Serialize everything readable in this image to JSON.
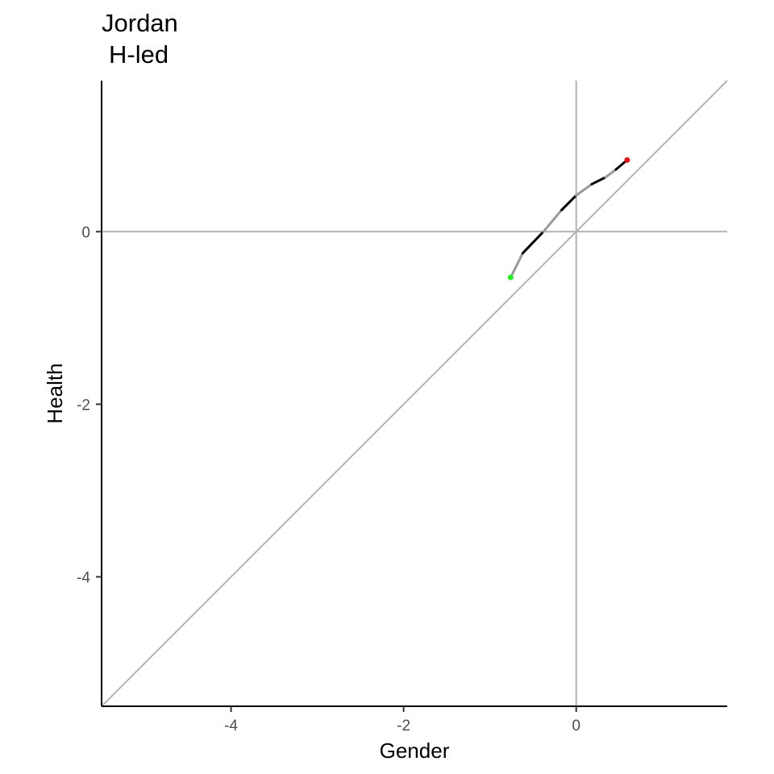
{
  "chart_data": {
    "type": "line",
    "title_lines": [
      "Jordan",
      "H-led"
    ],
    "xlabel": "Gender",
    "ylabel": "Health",
    "xlim": [
      -5.5,
      1.75
    ],
    "ylim": [
      -5.5,
      1.75
    ],
    "x_ticks": [
      -4,
      -2,
      0
    ],
    "x_tick_labels": [
      "-4",
      "-2",
      "0"
    ],
    "y_ticks": [
      -4,
      -2,
      0
    ],
    "y_tick_labels": [
      "-4",
      "-2",
      "0"
    ],
    "reference_lines": [
      {
        "type": "vline",
        "x": 0
      },
      {
        "type": "hline",
        "y": 0
      },
      {
        "type": "diagonal",
        "slope": 1,
        "intercept": 0
      }
    ],
    "grid": false,
    "series": [
      {
        "points": [
          [
            -0.76,
            -0.53
          ],
          [
            -0.62,
            -0.25
          ],
          [
            -0.38,
            0.0
          ],
          [
            -0.17,
            0.25
          ],
          [
            0.0,
            0.42
          ],
          [
            0.18,
            0.55
          ],
          [
            0.34,
            0.63
          ],
          [
            0.46,
            0.72
          ],
          [
            0.59,
            0.83
          ]
        ],
        "segment_colors": [
          "#999999",
          "#000000",
          "#999999",
          "#000000",
          "#999999",
          "#000000",
          "#999999",
          "#000000"
        ]
      }
    ],
    "start_point": {
      "x": -0.76,
      "y": -0.53,
      "color": "#22ee22"
    },
    "end_point": {
      "x": 0.59,
      "y": 0.83,
      "color": "#ee1111"
    },
    "colors": {
      "reference_line": "#b3b3b3",
      "axis": "#000000",
      "tick_label": "#4d4d4d"
    }
  }
}
